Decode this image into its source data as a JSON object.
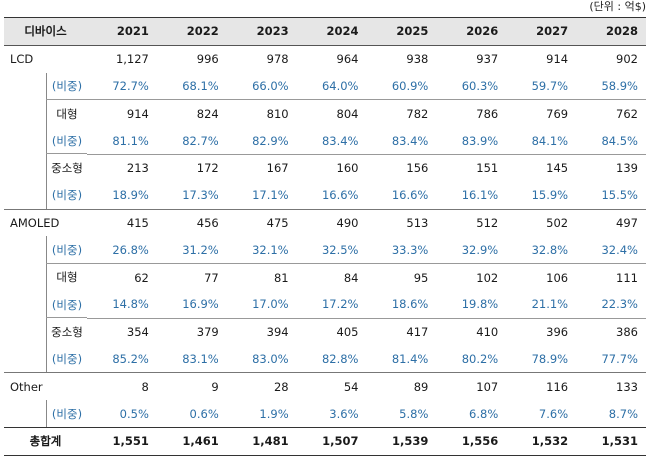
{
  "unit": "(단위 : 억$)",
  "header": {
    "label": "디바이스",
    "years": [
      "2021",
      "2022",
      "2023",
      "2024",
      "2025",
      "2026",
      "2027",
      "2028"
    ]
  },
  "rows": [
    {
      "kind": "main",
      "label": "LCD",
      "values": [
        "1,127",
        "996",
        "978",
        "964",
        "938",
        "937",
        "914",
        "902"
      ]
    },
    {
      "kind": "ratio",
      "label": "(비중)",
      "values": [
        "72.7%",
        "68.1%",
        "66.0%",
        "64.0%",
        "60.9%",
        "60.3%",
        "59.7%",
        "58.9%"
      ]
    },
    {
      "kind": "sub",
      "label": "대형",
      "values": [
        "914",
        "824",
        "810",
        "804",
        "782",
        "786",
        "769",
        "762"
      ]
    },
    {
      "kind": "ratio",
      "label": "(비중)",
      "values": [
        "81.1%",
        "82.7%",
        "82.9%",
        "83.4%",
        "83.4%",
        "83.9%",
        "84.1%",
        "84.5%"
      ]
    },
    {
      "kind": "sub",
      "label": "중소형",
      "values": [
        "213",
        "172",
        "167",
        "160",
        "156",
        "151",
        "145",
        "139"
      ]
    },
    {
      "kind": "ratio",
      "label": "(비중)",
      "values": [
        "18.9%",
        "17.3%",
        "17.1%",
        "16.6%",
        "16.6%",
        "16.1%",
        "15.9%",
        "15.5%"
      ]
    },
    {
      "kind": "main",
      "label": "AMOLED",
      "values": [
        "415",
        "456",
        "475",
        "490",
        "513",
        "512",
        "502",
        "497"
      ]
    },
    {
      "kind": "ratio",
      "label": "(비중)",
      "values": [
        "26.8%",
        "31.2%",
        "32.1%",
        "32.5%",
        "33.3%",
        "32.9%",
        "32.8%",
        "32.4%"
      ]
    },
    {
      "kind": "sub",
      "label": "대형",
      "values": [
        "62",
        "77",
        "81",
        "84",
        "95",
        "102",
        "106",
        "111"
      ]
    },
    {
      "kind": "ratio",
      "label": "(비중)",
      "values": [
        "14.8%",
        "16.9%",
        "17.0%",
        "17.2%",
        "18.6%",
        "19.8%",
        "21.1%",
        "22.3%"
      ]
    },
    {
      "kind": "sub",
      "label": "중소형",
      "values": [
        "354",
        "379",
        "394",
        "405",
        "417",
        "410",
        "396",
        "386"
      ]
    },
    {
      "kind": "ratio",
      "label": "(비중)",
      "values": [
        "85.2%",
        "83.1%",
        "83.0%",
        "82.8%",
        "81.4%",
        "80.2%",
        "78.9%",
        "77.7%"
      ]
    },
    {
      "kind": "main",
      "label": "Other",
      "values": [
        "8",
        "9",
        "28",
        "54",
        "89",
        "107",
        "116",
        "133"
      ]
    },
    {
      "kind": "ratio",
      "label": "(비중)",
      "values": [
        "0.5%",
        "0.6%",
        "1.9%",
        "3.6%",
        "5.8%",
        "6.8%",
        "7.6%",
        "8.7%"
      ]
    },
    {
      "kind": "total",
      "label": "총합계",
      "values": [
        "1,551",
        "1,461",
        "1,481",
        "1,507",
        "1,539",
        "1,556",
        "1,532",
        "1,531"
      ]
    }
  ]
}
